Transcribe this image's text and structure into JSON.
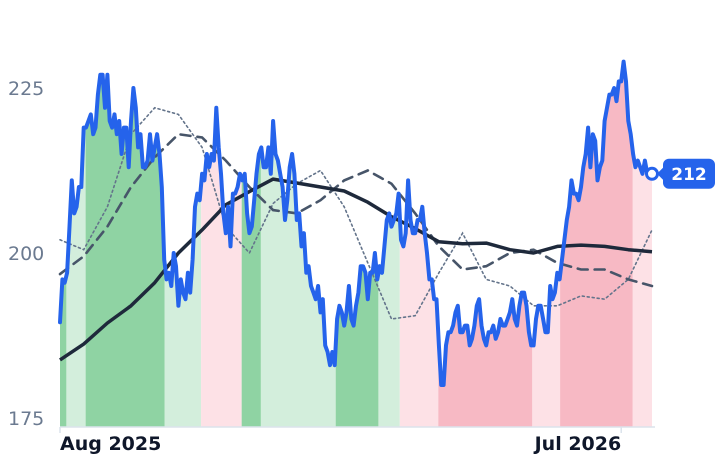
{
  "chart_data": {
    "type": "line",
    "yticks": [
      175,
      200,
      225
    ],
    "ylim": [
      175,
      231
    ],
    "xlim": [
      0,
      250
    ],
    "xticks": [
      {
        "x": 0,
        "label": "Aug 2025"
      },
      {
        "x": 237,
        "label": "Jul 2026"
      }
    ],
    "last_value_label": "212",
    "grid": false,
    "colors": {
      "price": "#2563eb",
      "ma_long": "#1e293b",
      "ma_mid": "#475569",
      "ma_short": "#64748b",
      "band_up_dark": "#8fd3a3",
      "band_up_light": "#d3eedc",
      "band_down_dark": "#f7b9c4",
      "band_down_light": "#fde1e6",
      "axis": "#dbe3ec"
    },
    "price_anchors": [
      [
        0,
        189.5
      ],
      [
        1,
        196
      ],
      [
        2,
        195.5
      ],
      [
        3,
        197
      ],
      [
        4,
        204
      ],
      [
        5,
        211
      ],
      [
        6,
        206
      ],
      [
        7,
        207
      ],
      [
        8,
        210
      ],
      [
        9,
        210
      ],
      [
        10,
        219
      ],
      [
        11,
        219
      ],
      [
        12,
        220
      ],
      [
        13,
        221
      ],
      [
        14,
        218
      ],
      [
        15,
        219
      ],
      [
        16,
        224
      ],
      [
        17,
        227
      ],
      [
        18,
        227
      ],
      [
        19,
        222
      ],
      [
        20,
        227
      ],
      [
        21,
        220
      ],
      [
        22,
        219
      ],
      [
        23,
        221
      ],
      [
        24,
        218
      ],
      [
        25,
        220
      ],
      [
        26,
        215
      ],
      [
        27,
        219
      ],
      [
        28,
        219
      ],
      [
        29,
        213
      ],
      [
        30,
        220
      ],
      [
        31,
        225
      ],
      [
        32,
        222
      ],
      [
        33,
        216
      ],
      [
        34,
        218
      ],
      [
        35,
        213
      ],
      [
        36,
        213
      ],
      [
        37,
        214
      ],
      [
        38,
        218
      ],
      [
        39,
        214
      ],
      [
        40,
        216
      ],
      [
        41,
        218
      ],
      [
        42,
        215
      ],
      [
        43,
        210
      ],
      [
        44,
        199
      ],
      [
        45,
        196
      ],
      [
        46,
        197
      ],
      [
        47,
        195
      ],
      [
        48,
        200
      ],
      [
        49,
        198
      ],
      [
        50,
        192
      ],
      [
        51,
        196
      ],
      [
        52,
        194
      ],
      [
        53,
        193
      ],
      [
        54,
        197
      ],
      [
        55,
        194
      ],
      [
        56,
        199
      ],
      [
        57,
        207
      ],
      [
        58,
        209
      ],
      [
        59,
        208
      ],
      [
        60,
        212
      ],
      [
        61,
        211
      ],
      [
        62,
        215
      ],
      [
        63,
        213
      ],
      [
        64,
        215
      ],
      [
        65,
        214
      ],
      [
        66,
        222
      ],
      [
        67,
        216
      ],
      [
        68,
        212
      ],
      [
        69,
        206
      ],
      [
        70,
        203
      ],
      [
        71,
        207
      ],
      [
        72,
        201
      ],
      [
        73,
        209
      ],
      [
        74,
        209
      ],
      [
        75,
        210
      ],
      [
        76,
        212
      ],
      [
        77,
        211
      ],
      [
        78,
        212
      ],
      [
        79,
        206
      ],
      [
        80,
        203
      ],
      [
        81,
        204
      ],
      [
        82,
        208
      ],
      [
        83,
        212
      ],
      [
        84,
        215
      ],
      [
        85,
        216
      ],
      [
        86,
        213
      ],
      [
        87,
        213
      ],
      [
        88,
        216
      ],
      [
        89,
        212
      ],
      [
        90,
        220
      ],
      [
        91,
        215
      ],
      [
        92,
        214
      ],
      [
        93,
        212
      ],
      [
        94,
        210
      ],
      [
        95,
        205
      ],
      [
        96,
        208
      ],
      [
        97,
        213
      ],
      [
        98,
        215
      ],
      [
        99,
        212
      ],
      [
        100,
        205
      ],
      [
        101,
        206
      ],
      [
        102,
        201
      ],
      [
        103,
        203
      ],
      [
        104,
        197
      ],
      [
        105,
        198
      ],
      [
        106,
        195
      ],
      [
        107,
        194
      ],
      [
        108,
        193
      ],
      [
        109,
        195
      ],
      [
        110,
        191
      ],
      [
        111,
        193
      ],
      [
        112,
        186
      ],
      [
        113,
        185
      ],
      [
        114,
        183
      ],
      [
        115,
        185
      ],
      [
        116,
        183
      ],
      [
        117,
        190
      ],
      [
        118,
        192
      ],
      [
        119,
        191
      ],
      [
        120,
        189
      ],
      [
        121,
        191
      ],
      [
        122,
        195
      ],
      [
        123,
        190
      ],
      [
        124,
        189
      ],
      [
        125,
        192
      ],
      [
        126,
        194
      ],
      [
        127,
        198
      ],
      [
        128,
        198
      ],
      [
        129,
        197
      ],
      [
        130,
        193
      ],
      [
        131,
        197
      ],
      [
        132,
        197
      ],
      [
        133,
        200
      ],
      [
        134,
        196
      ],
      [
        135,
        198
      ],
      [
        136,
        197
      ],
      [
        137,
        201
      ],
      [
        138,
        205
      ],
      [
        139,
        206
      ],
      [
        140,
        204
      ],
      [
        141,
        205
      ],
      [
        142,
        206
      ],
      [
        143,
        209
      ],
      [
        144,
        202
      ],
      [
        145,
        201
      ],
      [
        146,
        203
      ],
      [
        147,
        211
      ],
      [
        148,
        205
      ],
      [
        149,
        203
      ],
      [
        150,
        203
      ],
      [
        151,
        205
      ],
      [
        152,
        205
      ],
      [
        153,
        207
      ],
      [
        154,
        203
      ],
      [
        155,
        200
      ],
      [
        156,
        196
      ],
      [
        157,
        196
      ],
      [
        158,
        193
      ],
      [
        159,
        193
      ],
      [
        160,
        186
      ],
      [
        161,
        180
      ],
      [
        162,
        180
      ],
      [
        163,
        186
      ],
      [
        164,
        188
      ],
      [
        165,
        188
      ],
      [
        166,
        189
      ],
      [
        167,
        191
      ],
      [
        168,
        192
      ],
      [
        169,
        188
      ],
      [
        170,
        188
      ],
      [
        171,
        189
      ],
      [
        172,
        189
      ],
      [
        173,
        186
      ],
      [
        174,
        187
      ],
      [
        175,
        189
      ],
      [
        176,
        192
      ],
      [
        177,
        193
      ],
      [
        178,
        189
      ],
      [
        179,
        187
      ],
      [
        180,
        186
      ],
      [
        181,
        188
      ],
      [
        182,
        188
      ],
      [
        183,
        189
      ],
      [
        184,
        187
      ],
      [
        185,
        188
      ],
      [
        186,
        190
      ],
      [
        187,
        189
      ],
      [
        188,
        189
      ],
      [
        189,
        190
      ],
      [
        190,
        191
      ],
      [
        191,
        193
      ],
      [
        192,
        190
      ],
      [
        193,
        189
      ],
      [
        194,
        192
      ],
      [
        195,
        194
      ],
      [
        196,
        194
      ],
      [
        197,
        192
      ],
      [
        198,
        188
      ],
      [
        199,
        186
      ],
      [
        200,
        186
      ],
      [
        201,
        190
      ],
      [
        202,
        192
      ],
      [
        203,
        192
      ],
      [
        204,
        190
      ],
      [
        205,
        188
      ],
      [
        206,
        188
      ],
      [
        207,
        195
      ],
      [
        208,
        193
      ],
      [
        209,
        194
      ],
      [
        210,
        197
      ],
      [
        211,
        196
      ],
      [
        212,
        199
      ],
      [
        213,
        202
      ],
      [
        214,
        205
      ],
      [
        215,
        207
      ],
      [
        216,
        211
      ],
      [
        217,
        209
      ],
      [
        218,
        209
      ],
      [
        219,
        208
      ],
      [
        220,
        210
      ],
      [
        221,
        213
      ],
      [
        222,
        215
      ],
      [
        223,
        219
      ],
      [
        224,
        213
      ],
      [
        225,
        218
      ],
      [
        226,
        217
      ],
      [
        227,
        211
      ],
      [
        228,
        213
      ],
      [
        229,
        214
      ],
      [
        230,
        220
      ],
      [
        231,
        222
      ],
      [
        232,
        224
      ],
      [
        233,
        224
      ],
      [
        234,
        225
      ],
      [
        235,
        223
      ],
      [
        236,
        226
      ],
      [
        237,
        226
      ],
      [
        238,
        229
      ],
      [
        239,
        226
      ],
      [
        240,
        220
      ],
      [
        241,
        218
      ],
      [
        242,
        215
      ],
      [
        243,
        213
      ],
      [
        244,
        214
      ],
      [
        245,
        213
      ],
      [
        246,
        212
      ],
      [
        247,
        214
      ],
      [
        248,
        212
      ],
      [
        249,
        212
      ],
      [
        250,
        212
      ]
    ],
    "ma_long": [
      [
        0,
        183.8
      ],
      [
        10,
        186.2
      ],
      [
        20,
        189.4
      ],
      [
        30,
        192.0
      ],
      [
        40,
        195.5
      ],
      [
        50,
        200.0
      ],
      [
        60,
        203.5
      ],
      [
        70,
        207.3
      ],
      [
        80,
        209.3
      ],
      [
        90,
        211.2
      ],
      [
        100,
        210.6
      ],
      [
        110,
        210.0
      ],
      [
        120,
        209.4
      ],
      [
        130,
        207.7
      ],
      [
        140,
        205.5
      ],
      [
        150,
        203.7
      ],
      [
        160,
        201.7
      ],
      [
        170,
        201.4
      ],
      [
        180,
        201.5
      ],
      [
        190,
        200.5
      ],
      [
        200,
        200.0
      ],
      [
        210,
        201.0
      ],
      [
        220,
        201.2
      ],
      [
        230,
        201.0
      ],
      [
        240,
        200.5
      ],
      [
        250,
        200.2
      ]
    ],
    "ma_mid": [
      [
        0,
        196.8
      ],
      [
        10,
        199.5
      ],
      [
        20,
        204.0
      ],
      [
        30,
        210.0
      ],
      [
        40,
        214.5
      ],
      [
        50,
        218.0
      ],
      [
        60,
        217.5
      ],
      [
        70,
        214.0
      ],
      [
        80,
        210.0
      ],
      [
        90,
        206.5
      ],
      [
        100,
        206.0
      ],
      [
        110,
        208.0
      ],
      [
        120,
        211.0
      ],
      [
        130,
        212.5
      ],
      [
        140,
        210.5
      ],
      [
        150,
        206.0
      ],
      [
        160,
        201.0
      ],
      [
        170,
        197.5
      ],
      [
        180,
        198.0
      ],
      [
        190,
        200.0
      ],
      [
        200,
        200.5
      ],
      [
        210,
        198.5
      ],
      [
        220,
        197.5
      ],
      [
        230,
        197.5
      ],
      [
        240,
        196.0
      ],
      [
        250,
        195.0
      ]
    ],
    "ma_short": [
      [
        0,
        202.0
      ],
      [
        10,
        200.5
      ],
      [
        20,
        207.0
      ],
      [
        30,
        218.0
      ],
      [
        40,
        222.0
      ],
      [
        50,
        221.0
      ],
      [
        60,
        216.0
      ],
      [
        70,
        204.0
      ],
      [
        80,
        200.0
      ],
      [
        90,
        207.5
      ],
      [
        100,
        210.5
      ],
      [
        110,
        212.5
      ],
      [
        120,
        207.0
      ],
      [
        130,
        198.5
      ],
      [
        140,
        190.0
      ],
      [
        150,
        190.5
      ],
      [
        160,
        197.0
      ],
      [
        170,
        203.0
      ],
      [
        180,
        196.0
      ],
      [
        190,
        195.0
      ],
      [
        200,
        192.0
      ],
      [
        210,
        192.0
      ],
      [
        220,
        193.5
      ],
      [
        230,
        193.0
      ],
      [
        240,
        196.0
      ],
      [
        250,
        203.5
      ]
    ],
    "bands": [
      [
        0,
        3,
        "up_dark"
      ],
      [
        3,
        12,
        "up_light"
      ],
      [
        12,
        49,
        "up_dark"
      ],
      [
        49,
        66,
        "up_light"
      ],
      [
        66,
        85,
        "down_light"
      ],
      [
        85,
        94,
        "up_dark"
      ],
      [
        94,
        129,
        "up_light"
      ],
      [
        129,
        149,
        "up_dark"
      ],
      [
        149,
        159,
        "up_light"
      ],
      [
        159,
        177,
        "down_light"
      ],
      [
        177,
        221,
        "down_dark"
      ],
      [
        221,
        234,
        "down_light"
      ],
      [
        234,
        268,
        "down_dark"
      ],
      [
        268,
        277,
        "down_light"
      ]
    ]
  }
}
